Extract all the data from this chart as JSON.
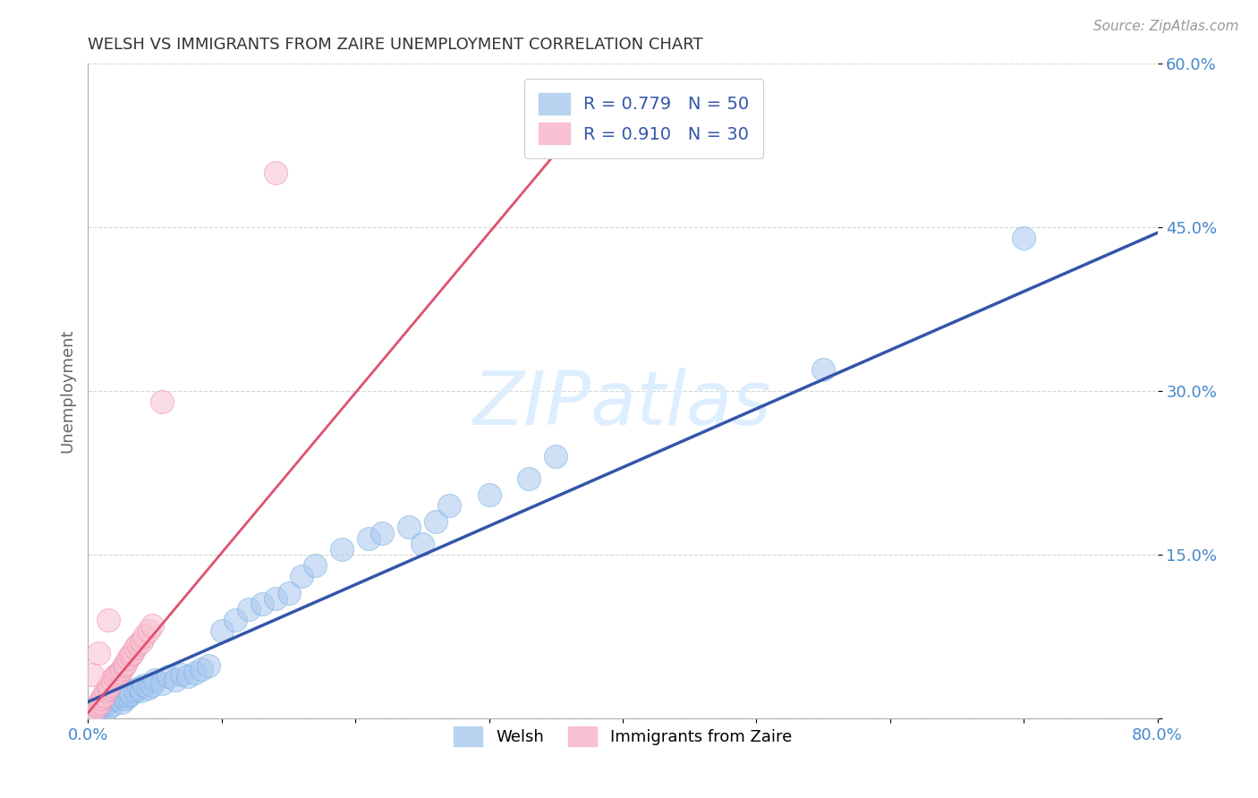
{
  "title": "WELSH VS IMMIGRANTS FROM ZAIRE UNEMPLOYMENT CORRELATION CHART",
  "source_text": "Source: ZipAtlas.com",
  "ylabel": "Unemployment",
  "xlim": [
    0.0,
    0.8
  ],
  "ylim": [
    0.0,
    0.6
  ],
  "xticks": [
    0.0,
    0.1,
    0.2,
    0.3,
    0.4,
    0.5,
    0.6,
    0.7,
    0.8
  ],
  "xticklabels": [
    "0.0%",
    "",
    "",
    "",
    "",
    "",
    "",
    "",
    "80.0%"
  ],
  "ytick_positions": [
    0.0,
    0.15,
    0.3,
    0.45,
    0.6
  ],
  "ytick_labels_right": [
    "",
    "15.0%",
    "30.0%",
    "45.0%",
    "60.0%"
  ],
  "welsh_color": "#a8c8f0",
  "zaire_color": "#f8c0d0",
  "welsh_edge_color": "#7ab0e0",
  "zaire_edge_color": "#f090b0",
  "welsh_line_color": "#3355aa",
  "zaire_line_color": "#e05070",
  "watermark_text": "ZIPatlas",
  "watermark_color": "#ddeeff",
  "background_color": "#ffffff",
  "grid_color": "#cccccc",
  "title_color": "#333333",
  "tick_color": "#4488cc",
  "legend_text_color": "#3355aa",
  "welsh_line": {
    "x0": 0.0,
    "y0": 0.015,
    "x1": 0.8,
    "y1": 0.445
  },
  "zaire_line": {
    "x0": 0.0,
    "y0": 0.005,
    "x1": 0.375,
    "y1": 0.555
  },
  "welsh_x": [
    0.005,
    0.008,
    0.01,
    0.012,
    0.015,
    0.015,
    0.018,
    0.02,
    0.022,
    0.025,
    0.025,
    0.028,
    0.03,
    0.03,
    0.032,
    0.035,
    0.038,
    0.04,
    0.042,
    0.045,
    0.048,
    0.05,
    0.055,
    0.06,
    0.065,
    0.07,
    0.075,
    0.08,
    0.085,
    0.09,
    0.1,
    0.11,
    0.12,
    0.13,
    0.14,
    0.15,
    0.16,
    0.17,
    0.19,
    0.21,
    0.22,
    0.24,
    0.25,
    0.26,
    0.27,
    0.3,
    0.33,
    0.35,
    0.55,
    0.7
  ],
  "welsh_y": [
    0.005,
    0.008,
    0.01,
    0.012,
    0.01,
    0.015,
    0.012,
    0.018,
    0.02,
    0.015,
    0.022,
    0.018,
    0.02,
    0.025,
    0.022,
    0.025,
    0.028,
    0.025,
    0.03,
    0.028,
    0.03,
    0.035,
    0.032,
    0.038,
    0.035,
    0.04,
    0.038,
    0.042,
    0.045,
    0.048,
    0.08,
    0.09,
    0.1,
    0.105,
    0.11,
    0.115,
    0.13,
    0.14,
    0.155,
    0.165,
    0.17,
    0.175,
    0.16,
    0.18,
    0.195,
    0.205,
    0.22,
    0.24,
    0.32,
    0.44
  ],
  "zaire_x": [
    0.003,
    0.005,
    0.007,
    0.009,
    0.01,
    0.012,
    0.013,
    0.015,
    0.016,
    0.018,
    0.02,
    0.022,
    0.024,
    0.025,
    0.027,
    0.028,
    0.03,
    0.032,
    0.033,
    0.035,
    0.037,
    0.04,
    0.042,
    0.045,
    0.048,
    0.003,
    0.008,
    0.015,
    0.055,
    0.14
  ],
  "zaire_y": [
    0.005,
    0.008,
    0.012,
    0.015,
    0.018,
    0.02,
    0.025,
    0.028,
    0.03,
    0.035,
    0.038,
    0.04,
    0.042,
    0.045,
    0.048,
    0.05,
    0.055,
    0.058,
    0.06,
    0.065,
    0.068,
    0.07,
    0.075,
    0.08,
    0.085,
    0.04,
    0.06,
    0.09,
    0.29,
    0.5
  ]
}
